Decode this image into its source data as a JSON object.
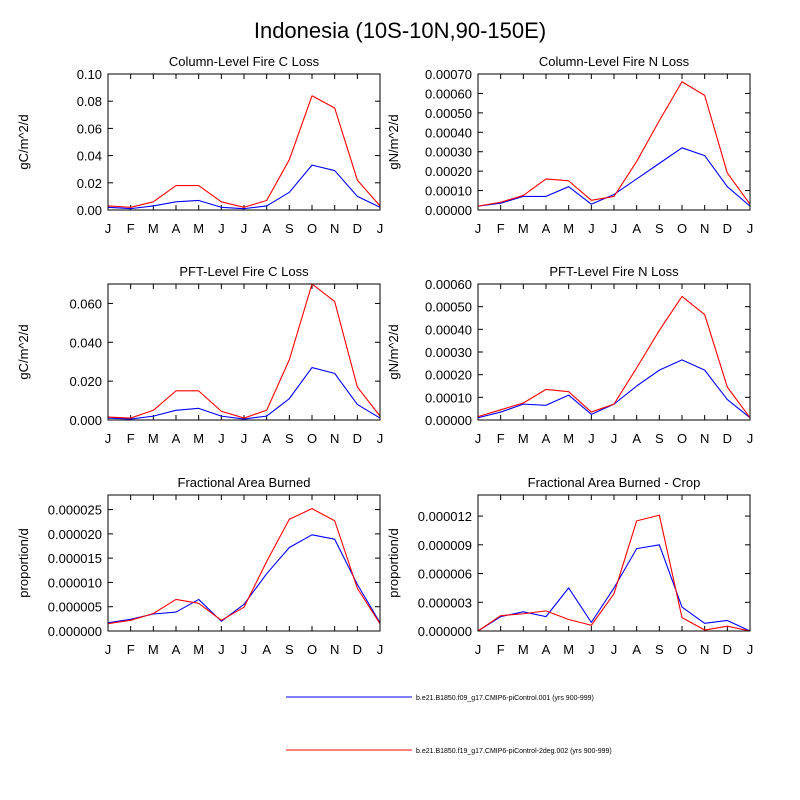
{
  "figure": {
    "title": "Indonesia (10S-10N,90-150E)"
  },
  "months": [
    "J",
    "F",
    "M",
    "A",
    "M",
    "J",
    "J",
    "A",
    "S",
    "O",
    "N",
    "D",
    "J"
  ],
  "legend": {
    "entries": [
      {
        "label": "b.e21.B1850.f09_g17.CMIP6-piControl.001 (yrs 900-999)",
        "color": "#0000ff"
      },
      {
        "label": "b.e21.B1850.f19_g17.CMIP6-piControl-2deg.002 (yrs 900-999)",
        "color": "#ff0000"
      }
    ]
  },
  "chart_data": [
    {
      "type": "line",
      "title": "Column-Level Fire C Loss",
      "ylabel": "gC/m^2/d",
      "xlabel": "",
      "ylim": [
        0,
        0.1
      ],
      "yticks": [
        0,
        0.02,
        0.04,
        0.06,
        0.08,
        0.1
      ],
      "ytick_labels": [
        "0.00",
        "0.02",
        "0.04",
        "0.06",
        "0.08",
        "0.10"
      ],
      "series": [
        {
          "name": "b.e21.B1850.f09_g17.CMIP6-piControl.001 (yrs 900-999)",
          "color": "#0000ff",
          "values": [
            0.002,
            0.001,
            0.003,
            0.006,
            0.007,
            0.002,
            0.001,
            0.003,
            0.013,
            0.033,
            0.029,
            0.01,
            0.002
          ]
        },
        {
          "name": "b.e21.B1850.f19_g17.CMIP6-piControl-2deg.002 (yrs 900-999)",
          "color": "#ff0000",
          "values": [
            0.003,
            0.002,
            0.006,
            0.018,
            0.018,
            0.006,
            0.002,
            0.007,
            0.037,
            0.084,
            0.075,
            0.022,
            0.003
          ]
        }
      ]
    },
    {
      "type": "line",
      "title": "Column-Level Fire N Loss",
      "ylabel": "gN/m^2/d",
      "xlabel": "",
      "ylim": [
        0,
        0.0007
      ],
      "yticks": [
        0,
        0.0001,
        0.0002,
        0.0003,
        0.0004,
        0.0005,
        0.0006,
        0.0007
      ],
      "ytick_labels": [
        "0.00000",
        "0.00010",
        "0.00020",
        "0.00030",
        "0.00040",
        "0.00050",
        "0.00060",
        "0.00070"
      ],
      "series": [
        {
          "name": "b.e21.B1850.f09_g17.CMIP6-piControl.001 (yrs 900-999)",
          "color": "#0000ff",
          "values": [
            2e-05,
            3.5e-05,
            7e-05,
            7e-05,
            0.00012,
            3e-05,
            8e-05,
            0.00016,
            0.00024,
            0.00032,
            0.00028,
            0.00012,
            2e-05
          ]
        },
        {
          "name": "b.e21.B1850.f19_g17.CMIP6-piControl-2deg.002 (yrs 900-999)",
          "color": "#ff0000",
          "values": [
            2e-05,
            4e-05,
            7.5e-05,
            0.00016,
            0.00015,
            5e-05,
            7e-05,
            0.00025,
            0.00046,
            0.00066,
            0.00059,
            0.00019,
            3e-05
          ]
        }
      ]
    },
    {
      "type": "line",
      "title": "PFT-Level Fire C Loss",
      "ylabel": "gC/m^2/d",
      "xlabel": "",
      "ylim": [
        0,
        0.07
      ],
      "yticks": [
        0,
        0.02,
        0.04,
        0.06
      ],
      "ytick_labels": [
        "0.000",
        "0.020",
        "0.040",
        "0.060"
      ],
      "series": [
        {
          "name": "b.e21.B1850.f09_g17.CMIP6-piControl.001 (yrs 900-999)",
          "color": "#0000ff",
          "values": [
            0.001,
            0.0005,
            0.002,
            0.005,
            0.006,
            0.002,
            0.0005,
            0.002,
            0.011,
            0.027,
            0.024,
            0.008,
            0.001
          ]
        },
        {
          "name": "b.e21.B1850.f19_g17.CMIP6-piControl-2deg.002 (yrs 900-999)",
          "color": "#ff0000",
          "values": [
            0.0015,
            0.001,
            0.005,
            0.015,
            0.015,
            0.0045,
            0.001,
            0.005,
            0.031,
            0.07,
            0.061,
            0.017,
            0.002
          ]
        }
      ]
    },
    {
      "type": "line",
      "title": "PFT-Level Fire N Loss",
      "ylabel": "gN/m^2/d",
      "xlabel": "",
      "ylim": [
        0,
        0.0006
      ],
      "yticks": [
        0,
        0.0001,
        0.0002,
        0.0003,
        0.0004,
        0.0005,
        0.0006
      ],
      "ytick_labels": [
        "0.00000",
        "0.00010",
        "0.00020",
        "0.00030",
        "0.00040",
        "0.00050",
        "0.00060"
      ],
      "series": [
        {
          "name": "b.e21.B1850.f09_g17.CMIP6-piControl.001 (yrs 900-999)",
          "color": "#0000ff",
          "values": [
            1e-05,
            3.5e-05,
            7e-05,
            6.5e-05,
            0.00011,
            2.5e-05,
            7e-05,
            0.00015,
            0.00022,
            0.000265,
            0.00022,
            9e-05,
            1e-05
          ]
        },
        {
          "name": "b.e21.B1850.f19_g17.CMIP6-piControl-2deg.002 (yrs 900-999)",
          "color": "#ff0000",
          "values": [
            1.5e-05,
            4.5e-05,
            7.5e-05,
            0.000135,
            0.000125,
            3.5e-05,
            7e-05,
            0.00023,
            0.000395,
            0.000545,
            0.000465,
            0.000145,
            1e-05
          ]
        }
      ]
    },
    {
      "type": "line",
      "title": "Fractional Area Burned",
      "ylabel": "proportion/d",
      "xlabel": "",
      "ylim": [
        0,
        2.8e-05
      ],
      "yticks": [
        0,
        5e-06,
        1e-05,
        1.5e-05,
        2e-05,
        2.5e-05
      ],
      "ytick_labels": [
        "0.000000",
        "0.000005",
        "0.000010",
        "0.000015",
        "0.000020",
        "0.000025"
      ],
      "series": [
        {
          "name": "b.e21.B1850.f09_g17.CMIP6-piControl.001 (yrs 900-999)",
          "color": "#0000ff",
          "values": [
            1.7e-06,
            2.4e-06,
            3.5e-06,
            3.9e-06,
            6.5e-06,
            2e-06,
            5.5e-06,
            1.18e-05,
            1.72e-05,
            1.98e-05,
            1.89e-05,
            9.6e-06,
            1.7e-06
          ]
        },
        {
          "name": "b.e21.B1850.f19_g17.CMIP6-piControl-2deg.002 (yrs 900-999)",
          "color": "#ff0000",
          "values": [
            1.5e-06,
            2.2e-06,
            3.6e-06,
            6.5e-06,
            5.7e-06,
            2.2e-06,
            4.9e-06,
            1.43e-05,
            2.3e-05,
            2.52e-05,
            2.27e-05,
            8.8e-06,
            1.5e-06
          ]
        }
      ]
    },
    {
      "type": "line",
      "title": "Fractional Area Burned - Crop",
      "ylabel": "proportion/d",
      "xlabel": "",
      "ylim": [
        0,
        1.42e-05
      ],
      "yticks": [
        0,
        3e-06,
        6e-06,
        9e-06,
        1.2e-05
      ],
      "ytick_labels": [
        "0.000000",
        "0.000003",
        "0.000006",
        "0.000009",
        "0.000012"
      ],
      "series": [
        {
          "name": "b.e21.B1850.f09_g17.CMIP6-piControl.001 (yrs 900-999)",
          "color": "#0000ff",
          "values": [
            0.0,
            1.5e-06,
            2e-06,
            1.5e-06,
            4.5e-06,
            9e-07,
            4.5e-06,
            8.6e-06,
            9e-06,
            2.5e-06,
            8e-07,
            1.1e-06,
            0.0
          ]
        },
        {
          "name": "b.e21.B1850.f19_g17.CMIP6-piControl-2deg.002 (yrs 900-999)",
          "color": "#ff0000",
          "values": [
            0.0,
            1.6e-06,
            1.8e-06,
            2.1e-06,
            1.2e-06,
            6e-07,
            3.9e-06,
            1.15e-05,
            1.21e-05,
            1.4e-06,
            1e-07,
            5e-07,
            0.0
          ]
        }
      ]
    }
  ]
}
